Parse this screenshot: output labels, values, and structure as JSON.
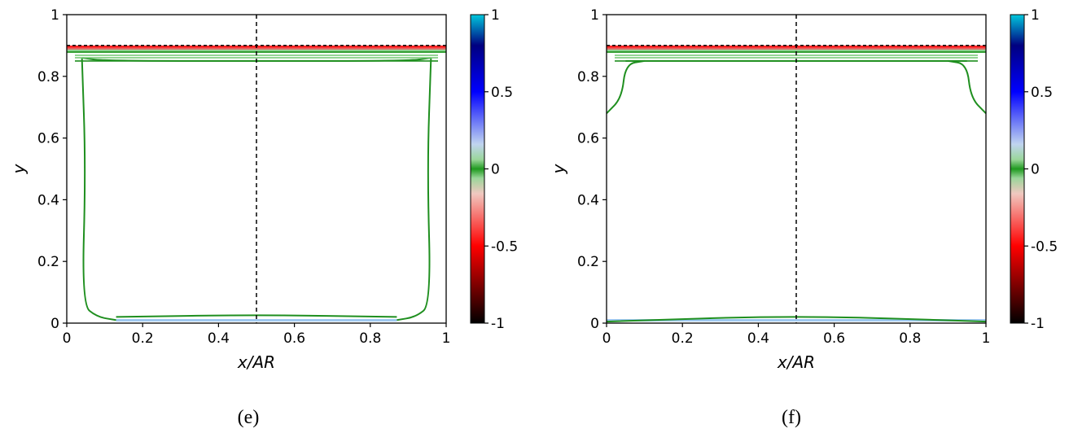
{
  "chart_data": [
    {
      "type": "contour",
      "panel_label": "(e)",
      "xlabel": "x/AR",
      "ylabel": "y",
      "xlim": [
        0,
        1
      ],
      "ylim": [
        0,
        1
      ],
      "xticks": [
        "0",
        "0.2",
        "0.4",
        "0.6",
        "0.8",
        "1"
      ],
      "yticks": [
        "0",
        "0.2",
        "0.4",
        "0.6",
        "0.8",
        "1"
      ],
      "interface_y": 0.9,
      "centerline_x": 0.5,
      "colorbar": {
        "range": [
          -1,
          1
        ],
        "ticks": [
          "1",
          "0.5",
          "0",
          "-0.5",
          "-1"
        ],
        "colors": [
          "#000000",
          "#ff0000",
          "#ffffff",
          "#0000ff",
          "#00c8dc"
        ]
      },
      "contours": [
        {
          "level": 0,
          "name": "bottom-band",
          "points": [
            [
              0.13,
              0.02
            ],
            [
              0.5,
              0.027
            ],
            [
              0.87,
              0.02
            ]
          ]
        },
        {
          "level": 0,
          "name": "left-wall",
          "points": [
            [
              0.04,
              0.86
            ],
            [
              0.05,
              0.5
            ],
            [
              0.04,
              0.06
            ],
            [
              0.08,
              0.02
            ],
            [
              0.13,
              0.01
            ]
          ]
        },
        {
          "level": 0,
          "name": "right-wall",
          "points": [
            [
              0.96,
              0.86
            ],
            [
              0.95,
              0.5
            ],
            [
              0.96,
              0.06
            ],
            [
              0.92,
              0.02
            ],
            [
              0.87,
              0.01
            ]
          ]
        },
        {
          "level": 0,
          "name": "top-band",
          "points": [
            [
              0.04,
              0.86
            ],
            [
              0.1,
              0.85
            ],
            [
              0.5,
              0.85
            ],
            [
              0.9,
              0.85
            ],
            [
              0.96,
              0.86
            ]
          ]
        }
      ]
    },
    {
      "type": "contour",
      "panel_label": "(f)",
      "xlabel": "x/AR",
      "ylabel": "y",
      "xlim": [
        0,
        1
      ],
      "ylim": [
        0,
        1
      ],
      "xticks": [
        "0",
        "0.2",
        "0.4",
        "0.6",
        "0.8",
        "1"
      ],
      "yticks": [
        "0",
        "0.2",
        "0.4",
        "0.6",
        "0.8",
        "1"
      ],
      "interface_y": 0.9,
      "centerline_x": 0.5,
      "colorbar": {
        "range": [
          -1,
          1
        ],
        "ticks": [
          "1",
          "0.5",
          "0",
          "-0.5",
          "-1"
        ],
        "colors": [
          "#000000",
          "#ff0000",
          "#ffffff",
          "#0000ff",
          "#00c8dc"
        ]
      },
      "contours": [
        {
          "level": 0,
          "name": "bottom-band",
          "points": [
            [
              0.0,
              0.005
            ],
            [
              0.5,
              0.025
            ],
            [
              1.0,
              0.005
            ]
          ]
        },
        {
          "level": 0,
          "name": "left-corner",
          "points": [
            [
              0.0,
              0.68
            ],
            [
              0.04,
              0.73
            ],
            [
              0.05,
              0.84
            ],
            [
              0.1,
              0.85
            ]
          ]
        },
        {
          "level": 0,
          "name": "right-corner",
          "points": [
            [
              1.0,
              0.68
            ],
            [
              0.96,
              0.73
            ],
            [
              0.95,
              0.84
            ],
            [
              0.9,
              0.85
            ]
          ]
        },
        {
          "level": 0,
          "name": "top-band",
          "points": [
            [
              0.05,
              0.85
            ],
            [
              0.5,
              0.85
            ],
            [
              0.95,
              0.85
            ]
          ]
        }
      ]
    }
  ]
}
